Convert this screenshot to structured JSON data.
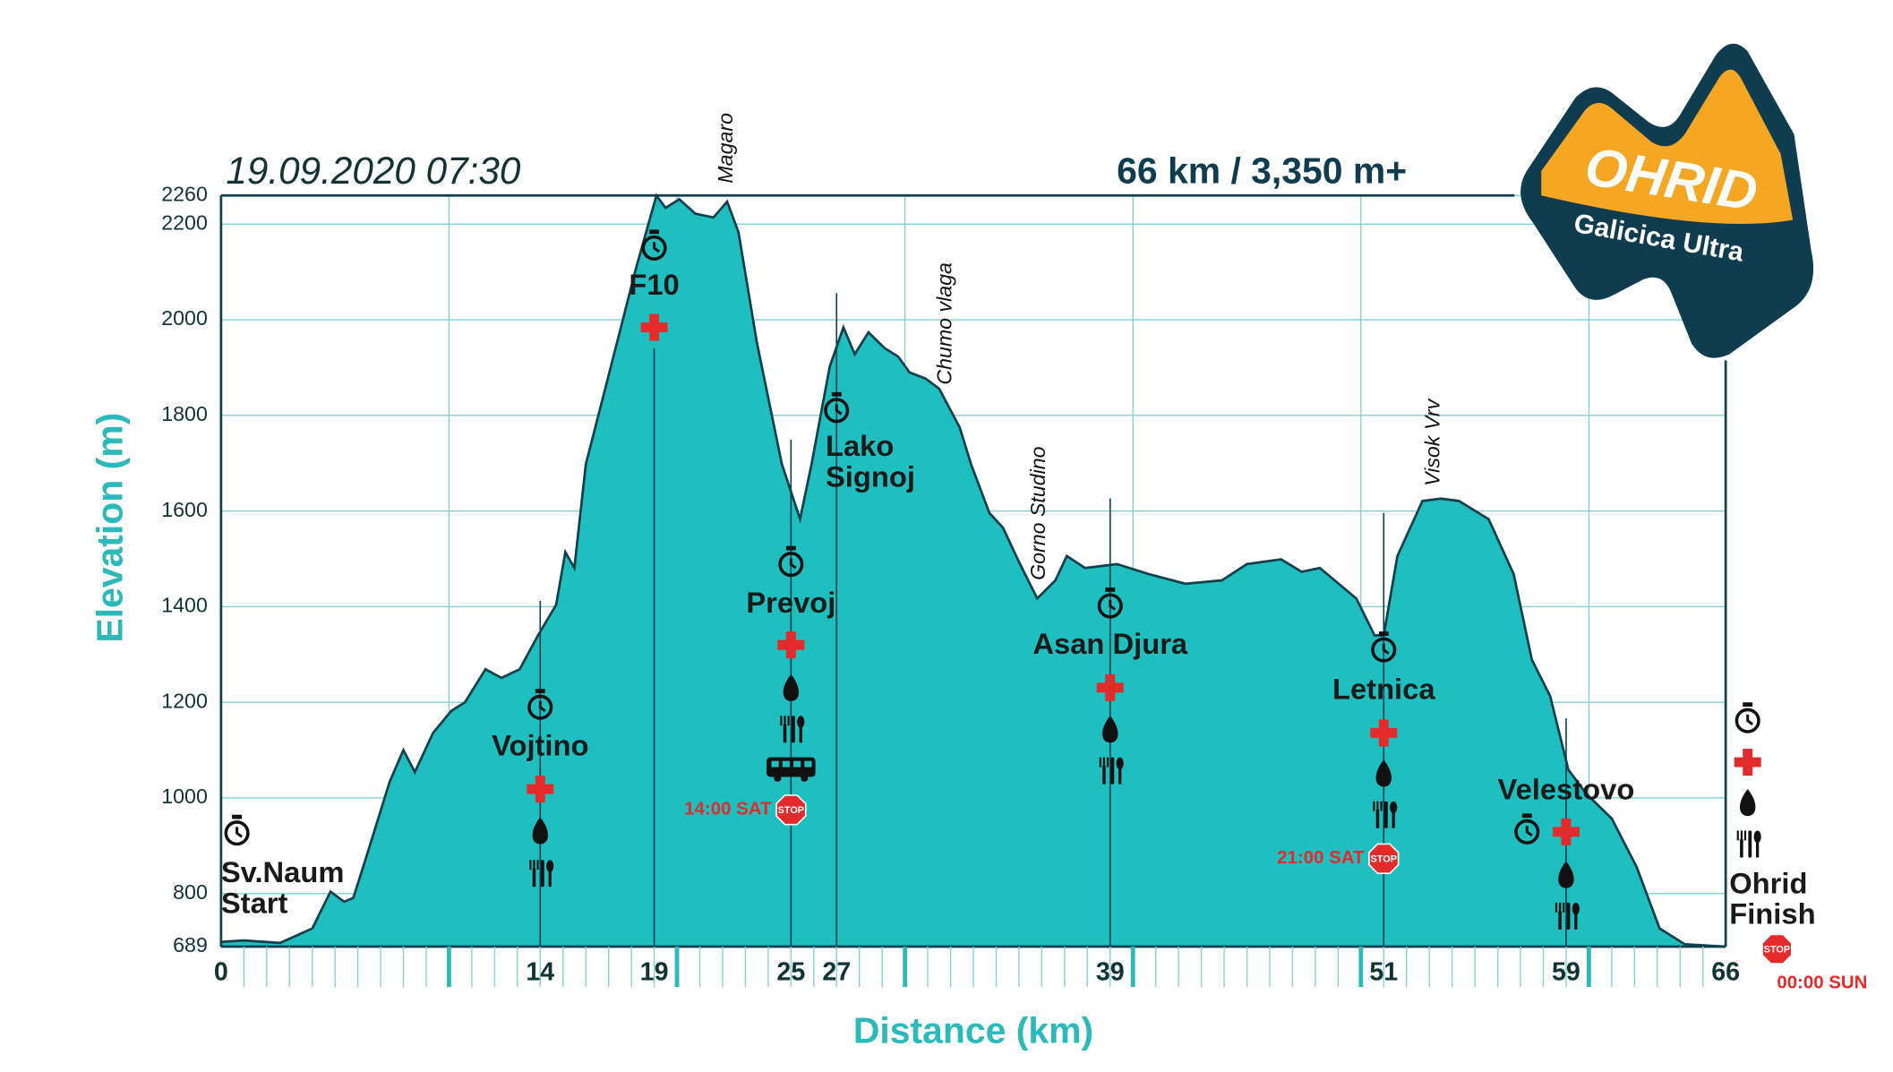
{
  "chart_data": {
    "type": "area",
    "title": "19.09.2020 07:30",
    "subtitle": "66 km / 3,350 m+",
    "xlabel": "Distance (km)",
    "ylabel": "Elevation (m)",
    "logo": {
      "title": "OHRID",
      "subtitle": "Galicica Ultra"
    },
    "x": [
      0,
      1,
      2.6,
      4,
      4.8,
      5.4,
      5.8,
      6.4,
      7.4,
      8,
      8.5,
      9.3,
      10.1,
      10.7,
      11.6,
      12.3,
      13.1,
      13.9,
      14.7,
      15.1,
      15.5,
      16,
      17.1,
      18.2,
      19.1,
      19.5,
      20.1,
      20.8,
      21.6,
      22.2,
      22.7,
      23.5,
      24.6,
      25.4,
      25.9,
      26.7,
      27.3,
      27.8,
      28.4,
      29.1,
      29.7,
      30.2,
      30.9,
      31.5,
      32.4,
      32.9,
      33.7,
      34.3,
      35,
      35.8,
      36.6,
      37.1,
      37.9,
      39.3,
      40.7,
      42.3,
      43.9,
      45,
      46.5,
      47.4,
      48.2,
      49.8,
      50.6,
      51,
      51.6,
      52.7,
      53.5,
      54.3,
      55.6,
      56.7,
      57.5,
      58.3,
      59.1,
      59.9,
      61,
      62.1,
      63.1,
      64.2,
      66
    ],
    "values": [
      699,
      702,
      697,
      727,
      804,
      783,
      791,
      881,
      1034,
      1100,
      1054,
      1136,
      1182,
      1200,
      1269,
      1251,
      1269,
      1340,
      1404,
      1514,
      1481,
      1698,
      1902,
      2107,
      2260,
      2234,
      2252,
      2222,
      2214,
      2247,
      2183,
      1953,
      1698,
      1583,
      1698,
      1902,
      1984,
      1928,
      1974,
      1941,
      1923,
      1890,
      1877,
      1856,
      1775,
      1698,
      1596,
      1565,
      1494,
      1417,
      1455,
      1506,
      1481,
      1489,
      1468,
      1448,
      1455,
      1489,
      1499,
      1473,
      1481,
      1417,
      1340,
      1340,
      1506,
      1621,
      1626,
      1621,
      1583,
      1468,
      1289,
      1213,
      1059,
      1008,
      957,
      855,
      727,
      694,
      689
    ],
    "color": "#1fbfbf",
    "xlim": [
      0,
      66
    ],
    "ylim": [
      689,
      2260
    ],
    "xticks": [
      0,
      14,
      19,
      25,
      27,
      39,
      51,
      59,
      66
    ],
    "yticks": [
      689,
      800,
      1000,
      1200,
      1400,
      1600,
      1800,
      2000,
      2200,
      2260
    ],
    "xgrid": [
      10,
      20,
      30,
      40,
      50,
      60
    ],
    "grid": true,
    "stop_label": "STOP",
    "stations": [
      {
        "km": 0,
        "name": [
          "Sv.Naum",
          "Start"
        ]
      },
      {
        "km": 14,
        "name": [
          "Vojtino"
        ]
      },
      {
        "km": 19,
        "name": [
          "F10"
        ]
      },
      {
        "km": 25,
        "name": [
          "Prevoj"
        ],
        "cutoff": "14:00 SAT"
      },
      {
        "km": 27,
        "name": [
          "Lako",
          "Signoj"
        ]
      },
      {
        "km": 39,
        "name": [
          "Asan Djura"
        ]
      },
      {
        "km": 51,
        "name": [
          "Letnica"
        ],
        "cutoff": "21:00 SAT"
      },
      {
        "km": 59,
        "name": [
          "Velestovo"
        ]
      },
      {
        "km": 66,
        "name": [
          "Ohrid",
          "Finish"
        ],
        "cutoff": "00:00 SUN"
      }
    ],
    "peaks": [
      {
        "km": 22.2,
        "name": "Magaro"
      },
      {
        "km": 31.8,
        "name": "Chumo vlaga"
      },
      {
        "km": 35.9,
        "name": "Gorno Studino"
      },
      {
        "km": 53.2,
        "name": "Visok Vrv"
      }
    ]
  }
}
